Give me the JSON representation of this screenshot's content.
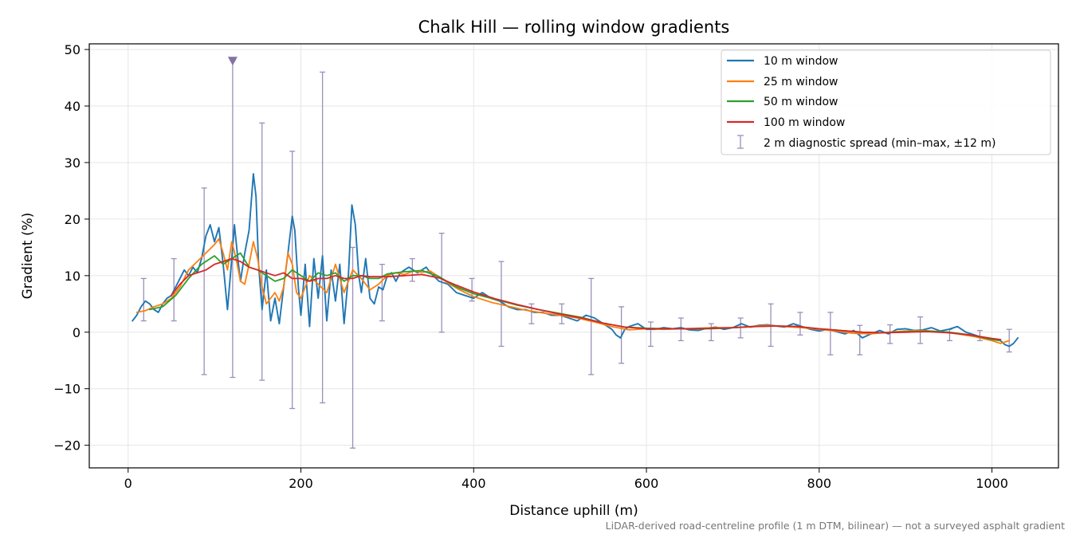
{
  "chart_data": {
    "type": "line",
    "title": "Chalk Hill — rolling window gradients",
    "xlabel": "Distance uphill (m)",
    "ylabel": "Gradient (%)",
    "footnote": "LiDAR-derived road-centreline profile (1 m DTM, bilinear) — not a surveyed asphalt gradient",
    "xlim": [
      -45,
      1077
    ],
    "ylim": [
      -24,
      51
    ],
    "x_ticks": [
      0,
      200,
      400,
      600,
      800,
      1000
    ],
    "x_tick_labels": [
      "0",
      "200",
      "400",
      "600",
      "800",
      "1000"
    ],
    "y_ticks": [
      -20,
      -10,
      0,
      10,
      20,
      30,
      40,
      50
    ],
    "y_tick_labels": [
      "−20",
      "−10",
      "0",
      "10",
      "20",
      "30",
      "40",
      "50"
    ],
    "grid": true,
    "legend_position": "upper right",
    "series": [
      {
        "name": "10 m window",
        "color": "#1f77b4",
        "x": [
          5,
          10,
          15,
          20,
          25,
          30,
          35,
          40,
          45,
          50,
          55,
          60,
          65,
          70,
          75,
          80,
          85,
          90,
          95,
          100,
          105,
          110,
          115,
          120,
          123,
          127,
          130,
          135,
          140,
          145,
          148,
          151,
          155,
          160,
          165,
          170,
          175,
          180,
          185,
          190,
          193,
          197,
          200,
          205,
          210,
          215,
          220,
          225,
          230,
          235,
          240,
          245,
          250,
          255,
          259,
          263,
          267,
          270,
          275,
          280,
          285,
          290,
          295,
          300,
          305,
          310,
          315,
          320,
          325,
          330,
          335,
          340,
          345,
          350,
          360,
          370,
          380,
          390,
          400,
          410,
          420,
          430,
          440,
          450,
          460,
          470,
          480,
          490,
          500,
          510,
          520,
          530,
          540,
          550,
          560,
          565,
          570,
          575,
          580,
          590,
          600,
          610,
          620,
          630,
          640,
          650,
          660,
          670,
          680,
          690,
          700,
          710,
          720,
          730,
          740,
          750,
          760,
          770,
          780,
          790,
          800,
          810,
          820,
          830,
          840,
          850,
          860,
          870,
          880,
          890,
          900,
          910,
          920,
          930,
          940,
          950,
          960,
          970,
          980,
          990,
          1000,
          1010,
          1015,
          1020,
          1025,
          1030
        ],
        "values": [
          2.0,
          3.0,
          4.5,
          5.5,
          5.0,
          4.0,
          3.5,
          5.0,
          6.0,
          6.5,
          8.0,
          9.5,
          11.0,
          10.0,
          11.5,
          10.5,
          13.0,
          17.0,
          19.0,
          16.0,
          18.5,
          12.0,
          4.0,
          13.0,
          19.0,
          13.0,
          9.0,
          14.0,
          18.0,
          28.0,
          24.0,
          12.0,
          4.0,
          11.0,
          2.0,
          6.0,
          1.5,
          8.0,
          14.0,
          20.5,
          18.0,
          8.0,
          3.0,
          12.0,
          1.0,
          13.0,
          6.0,
          13.5,
          2.0,
          11.0,
          5.5,
          12.0,
          1.5,
          10.0,
          22.5,
          19.0,
          10.0,
          7.0,
          13.0,
          6.0,
          5.0,
          8.0,
          7.5,
          10.0,
          10.5,
          9.0,
          10.5,
          11.0,
          11.5,
          11.0,
          10.5,
          11.0,
          11.5,
          10.5,
          9.0,
          8.5,
          7.0,
          6.5,
          6.0,
          7.0,
          6.0,
          5.5,
          4.5,
          4.0,
          4.0,
          3.5,
          3.5,
          3.0,
          3.0,
          2.5,
          2.0,
          3.0,
          2.5,
          1.5,
          0.5,
          -0.5,
          -1.0,
          0.5,
          1.0,
          1.5,
          0.5,
          0.5,
          0.8,
          0.6,
          0.8,
          0.4,
          0.3,
          0.7,
          0.9,
          0.5,
          0.8,
          1.5,
          0.9,
          1.2,
          1.3,
          1.1,
          0.9,
          1.5,
          1.0,
          0.5,
          0.2,
          0.5,
          0.1,
          -0.3,
          0.3,
          -1.0,
          -0.3,
          0.3,
          -0.3,
          0.5,
          0.6,
          0.3,
          0.4,
          0.8,
          0.2,
          0.5,
          1.0,
          0.0,
          -0.5,
          -1.0,
          -1.2,
          -1.5,
          -2.2,
          -2.5,
          -2.0,
          -1.0
        ]
      },
      {
        "name": "25 m window",
        "color": "#ff7f0e",
        "x": [
          10,
          20,
          30,
          40,
          50,
          60,
          70,
          80,
          90,
          100,
          105,
          110,
          115,
          120,
          125,
          130,
          135,
          140,
          145,
          150,
          155,
          160,
          165,
          170,
          175,
          180,
          185,
          190,
          195,
          200,
          210,
          220,
          230,
          240,
          250,
          260,
          270,
          280,
          290,
          300,
          310,
          320,
          330,
          340,
          350,
          360,
          370,
          380,
          390,
          400,
          420,
          440,
          460,
          480,
          500,
          520,
          540,
          560,
          580,
          600,
          620,
          640,
          660,
          680,
          700,
          720,
          740,
          760,
          780,
          800,
          820,
          840,
          860,
          880,
          900,
          920,
          940,
          960,
          980,
          1000,
          1010,
          1020
        ],
        "values": [
          3.5,
          3.8,
          4.5,
          5.0,
          6.0,
          8.0,
          11.0,
          12.5,
          14.0,
          15.5,
          16.5,
          14.0,
          11.0,
          16.0,
          13.0,
          9.0,
          8.5,
          12.0,
          16.0,
          13.0,
          8.0,
          5.0,
          6.0,
          7.0,
          5.5,
          8.0,
          14.0,
          12.0,
          7.0,
          6.0,
          10.0,
          8.5,
          7.0,
          12.0,
          7.0,
          11.0,
          9.5,
          7.5,
          8.5,
          10.0,
          10.5,
          10.2,
          10.8,
          10.6,
          10.8,
          9.8,
          8.7,
          7.8,
          7.0,
          6.3,
          5.3,
          4.6,
          3.9,
          3.4,
          3.0,
          2.5,
          1.8,
          1.0,
          0.4,
          0.6,
          0.5,
          0.6,
          0.7,
          0.8,
          0.8,
          1.0,
          1.2,
          1.0,
          0.8,
          0.5,
          0.2,
          -0.2,
          -0.3,
          0.0,
          0.2,
          0.3,
          0.1,
          -0.3,
          -0.8,
          -1.5,
          -2.0,
          -1.5
        ]
      },
      {
        "name": "50 m window",
        "color": "#2ca02c",
        "x": [
          25,
          40,
          55,
          70,
          85,
          100,
          110,
          120,
          130,
          140,
          150,
          160,
          170,
          180,
          190,
          200,
          210,
          220,
          230,
          240,
          250,
          260,
          270,
          280,
          290,
          300,
          320,
          340,
          360,
          380,
          400,
          425,
          450,
          475,
          500,
          525,
          550,
          575,
          600,
          625,
          650,
          675,
          700,
          725,
          750,
          775,
          800,
          825,
          850,
          875,
          900,
          925,
          950,
          975,
          1000,
          1010
        ],
        "values": [
          4.0,
          4.5,
          6.5,
          9.5,
          12.0,
          13.5,
          12.0,
          13.0,
          14.0,
          11.5,
          11.0,
          10.0,
          9.0,
          9.5,
          11.0,
          10.0,
          9.0,
          10.5,
          10.0,
          10.5,
          9.0,
          10.0,
          10.0,
          9.5,
          9.5,
          10.3,
          10.7,
          10.9,
          9.8,
          8.0,
          6.8,
          5.8,
          4.8,
          4.0,
          3.3,
          2.6,
          1.6,
          0.9,
          0.7,
          0.6,
          0.6,
          0.6,
          0.8,
          1.0,
          1.1,
          1.0,
          0.6,
          0.3,
          0.0,
          -0.1,
          0.1,
          0.2,
          0.0,
          -0.5,
          -1.3,
          -1.5
        ]
      },
      {
        "name": "100 m window",
        "color": "#d62728",
        "x": [
          50,
          60,
          70,
          80,
          90,
          100,
          110,
          120,
          130,
          140,
          150,
          160,
          170,
          180,
          190,
          200,
          210,
          220,
          230,
          240,
          250,
          260,
          270,
          280,
          300,
          320,
          340,
          360,
          380,
          400,
          425,
          450,
          475,
          500,
          525,
          550,
          575,
          600,
          625,
          650,
          675,
          700,
          725,
          750,
          775,
          800,
          825,
          850,
          875,
          900,
          925,
          950,
          975,
          1000,
          1010
        ],
        "values": [
          6.5,
          8.5,
          10.0,
          10.5,
          11.0,
          12.0,
          12.5,
          13.0,
          12.5,
          11.5,
          11.0,
          10.5,
          10.0,
          10.5,
          9.5,
          9.5,
          9.0,
          9.5,
          9.5,
          10.0,
          9.5,
          9.5,
          10.0,
          9.8,
          9.8,
          10.0,
          10.2,
          9.6,
          8.3,
          7.1,
          5.9,
          4.9,
          4.0,
          3.2,
          2.5,
          1.6,
          0.9,
          0.6,
          0.6,
          0.6,
          0.7,
          0.8,
          1.0,
          1.1,
          1.0,
          0.6,
          0.3,
          0.0,
          -0.1,
          0.0,
          0.1,
          -0.1,
          -0.5,
          -1.1,
          -1.3
        ]
      }
    ],
    "error_bars": {
      "name": "2 m diagnostic spread (min–max, ±12 m)",
      "color": "#9b8fba",
      "points": [
        {
          "x": 18,
          "min": 2,
          "max": 9.5
        },
        {
          "x": 53,
          "min": 2,
          "max": 13
        },
        {
          "x": 88,
          "min": -7.5,
          "max": 25.5
        },
        {
          "x": 121,
          "min": -8,
          "max": 48
        },
        {
          "x": 155,
          "min": -8.5,
          "max": 37
        },
        {
          "x": 190,
          "min": -13.5,
          "max": 32
        },
        {
          "x": 225,
          "min": -12.5,
          "max": 46
        },
        {
          "x": 260,
          "min": -20.5,
          "max": 15
        },
        {
          "x": 294,
          "min": 2,
          "max": 12
        },
        {
          "x": 329,
          "min": 9,
          "max": 13
        },
        {
          "x": 363,
          "min": 0,
          "max": 17.5
        },
        {
          "x": 398,
          "min": 5.5,
          "max": 9.5
        },
        {
          "x": 432,
          "min": -2.5,
          "max": 12.5
        },
        {
          "x": 467,
          "min": 1.5,
          "max": 5
        },
        {
          "x": 502,
          "min": 1.5,
          "max": 5
        },
        {
          "x": 536,
          "min": -7.5,
          "max": 9.5
        },
        {
          "x": 571,
          "min": -5.5,
          "max": 4.5
        },
        {
          "x": 605,
          "min": -2.5,
          "max": 1.8
        },
        {
          "x": 640,
          "min": -1.5,
          "max": 2.5
        },
        {
          "x": 675,
          "min": -1.5,
          "max": 1.5
        },
        {
          "x": 709,
          "min": -1.0,
          "max": 2.5
        },
        {
          "x": 744,
          "min": -2.5,
          "max": 5
        },
        {
          "x": 778,
          "min": -0.5,
          "max": 3.5
        },
        {
          "x": 813,
          "min": -4,
          "max": 3.5
        },
        {
          "x": 847,
          "min": -4,
          "max": 1.2
        },
        {
          "x": 882,
          "min": -2,
          "max": 1.3
        },
        {
          "x": 917,
          "min": -2,
          "max": 2.7
        },
        {
          "x": 951,
          "min": -1.5,
          "max": 0.5
        },
        {
          "x": 986,
          "min": -1.5,
          "max": 0.3
        },
        {
          "x": 1020,
          "min": -3.5,
          "max": 0.5
        }
      ],
      "clipped_marker": {
        "x": 121,
        "y": 48
      }
    }
  }
}
